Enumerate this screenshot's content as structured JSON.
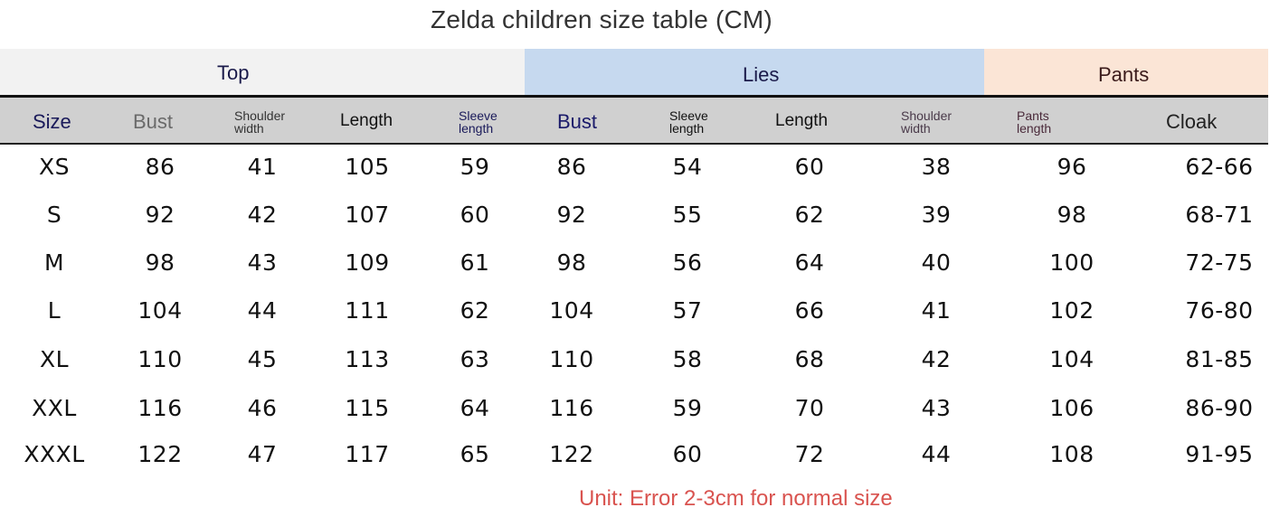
{
  "title": "Zelda children size table (CM)",
  "groups": {
    "top": "Top",
    "lies": "Lies",
    "pants": "Pants"
  },
  "columns": {
    "size": "Size",
    "top_bust": "Bust",
    "top_shoulder_1": "Shoulder",
    "top_shoulder_2": "width",
    "top_length": "Length",
    "top_sleeve_1": "Sleeve",
    "top_sleeve_2": "length",
    "lies_bust": "Bust",
    "lies_sleeve_1": "Sleeve",
    "lies_sleeve_2": "length",
    "lies_length": "Length",
    "lies_shoulder_1": "Shoulder",
    "lies_shoulder_2": "width",
    "pants_length_1": "Pants",
    "pants_length_2": "length",
    "cloak": "Cloak"
  },
  "colors": {
    "top_band": "#f2f2f2",
    "lies_band": "#c6d9ef",
    "pants_band": "#fbe5d6",
    "subheader_bg": "#d0d0d0",
    "note": "#d9534f"
  },
  "rows": [
    [
      "XS",
      "86",
      "41",
      "105",
      "59",
      "86",
      "54",
      "60",
      "38",
      "96",
      "62-66"
    ],
    [
      "S",
      "92",
      "42",
      "107",
      "60",
      "92",
      "55",
      "62",
      "39",
      "98",
      "68-71"
    ],
    [
      "M",
      "98",
      "43",
      "109",
      "61",
      "98",
      "56",
      "64",
      "40",
      "100",
      "72-75"
    ],
    [
      "L",
      "104",
      "44",
      "111",
      "62",
      "104",
      "57",
      "66",
      "41",
      "102",
      "76-80"
    ],
    [
      "XL",
      "110",
      "45",
      "113",
      "63",
      "110",
      "58",
      "68",
      "42",
      "104",
      "81-85"
    ],
    [
      "XXL",
      "116",
      "46",
      "115",
      "64",
      "116",
      "59",
      "70",
      "43",
      "106",
      "86-90"
    ],
    [
      "XXXL",
      "122",
      "47",
      "117",
      "65",
      "122",
      "60",
      "72",
      "44",
      "108",
      "91-95"
    ]
  ],
  "note": "Unit: Error 2-3cm for normal size"
}
